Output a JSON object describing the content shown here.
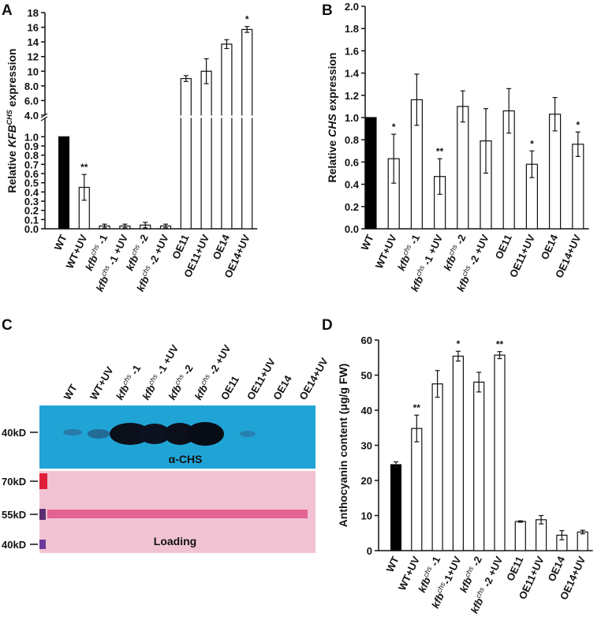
{
  "chart_data": [
    {
      "type": "bar",
      "panel_label": "A",
      "ylabel": [
        "Relative ",
        "KFB",
        "CHS",
        " expression"
      ],
      "ylabel_styles": [
        "normal",
        "italic",
        "sup",
        "normal"
      ],
      "categories": [
        "WT",
        "WT+UV",
        [
          "kfb",
          "chs",
          " -1"
        ],
        [
          "kfb",
          "chs",
          " -1 +UV"
        ],
        [
          "kfb",
          "chs",
          " -2"
        ],
        [
          "kfb",
          "chs",
          " -2 +UV"
        ],
        "OE11",
        "OE11+UV",
        "OE14",
        "OE14+UV"
      ],
      "values": [
        1.0,
        0.45,
        0.03,
        0.03,
        0.04,
        0.03,
        9.0,
        10.0,
        13.7,
        15.7
      ],
      "errors": [
        0,
        0.14,
        0.02,
        0.02,
        0.03,
        0.02,
        0.4,
        1.7,
        0.6,
        0.4
      ],
      "annotations": [
        null,
        "**",
        null,
        null,
        null,
        null,
        null,
        null,
        null,
        "*"
      ],
      "colors": [
        "#000000",
        "#ffffff",
        "#ffffff",
        "#ffffff",
        "#ffffff",
        "#ffffff",
        "#ffffff",
        "#ffffff",
        "#ffffff",
        "#ffffff"
      ],
      "ylim": [
        0,
        18
      ],
      "ybreak": [
        1.2,
        4
      ],
      "yticks": [
        {
          "value": 0,
          "label": "0.0"
        },
        0.1,
        0.2,
        0.3,
        0.4,
        0.5,
        0.6,
        0.7,
        0.8,
        0.9,
        {
          "value": 1,
          "label": "1.0"
        },
        {
          "value": 4,
          "label": "4.0"
        },
        {
          "value": 6,
          "label": "6.0"
        },
        {
          "value": 8,
          "label": "8.0"
        },
        10,
        12,
        14,
        16,
        18
      ]
    },
    {
      "type": "bar",
      "panel_label": "B",
      "ylabel": [
        "Relative ",
        "CHS",
        " expression"
      ],
      "ylabel_styles": [
        "normal",
        "italic",
        "normal"
      ],
      "categories": [
        "WT",
        "WT+UV",
        [
          "kfb",
          "chs",
          " -1"
        ],
        [
          "kfb",
          "chs",
          " -1 +UV"
        ],
        [
          "kfb",
          "chs",
          " -2"
        ],
        [
          "kfb",
          "chs",
          " -2 +UV"
        ],
        "OE11",
        "OE11+UV",
        "OE14",
        "OE14+UV"
      ],
      "values": [
        1.0,
        0.63,
        1.16,
        0.47,
        1.1,
        0.79,
        1.06,
        0.58,
        1.03,
        0.76
      ],
      "errors": [
        0,
        0.22,
        0.23,
        0.16,
        0.14,
        0.29,
        0.2,
        0.12,
        0.15,
        0.11
      ],
      "annotations": [
        null,
        "*",
        null,
        "**",
        null,
        null,
        null,
        "*",
        null,
        "*"
      ],
      "colors": [
        "#000000",
        "#ffffff",
        "#ffffff",
        "#ffffff",
        "#ffffff",
        "#ffffff",
        "#ffffff",
        "#ffffff",
        "#ffffff",
        "#ffffff"
      ],
      "ylim": [
        0,
        2
      ],
      "yticks": [
        {
          "value": 0,
          "label": "0.0"
        },
        0.2,
        0.4,
        0.6,
        0.8,
        {
          "value": 1,
          "label": "1.0"
        },
        1.2,
        1.4,
        1.6,
        1.8,
        {
          "value": 2,
          "label": "2.0"
        }
      ]
    },
    {
      "type": "bar",
      "panel_label": "D",
      "ylabel": [
        "Anthocyanin content (μg/g FW)"
      ],
      "ylabel_styles": [
        "normal"
      ],
      "categories": [
        "WT",
        "WT+UV",
        [
          "kfb",
          "chs",
          " -1"
        ],
        [
          "kfb",
          "chs",
          "-1+UV"
        ],
        [
          "kfb",
          "chs",
          " -2"
        ],
        [
          "kfb",
          "chs",
          " -2 +UV"
        ],
        "OE11",
        "OE11+UV",
        "OE14",
        "OE14+UV"
      ],
      "values": [
        24.5,
        34.8,
        47.5,
        55.4,
        48.0,
        55.7,
        8.3,
        8.8,
        4.4,
        5.3
      ],
      "errors": [
        0.8,
        3.8,
        3.8,
        1.4,
        2.8,
        1.0,
        0.2,
        1.2,
        1.3,
        0.5
      ],
      "annotations": [
        null,
        "**",
        null,
        "*",
        null,
        "**",
        null,
        null,
        null,
        null
      ],
      "colors": [
        "#000000",
        "#ffffff",
        "#ffffff",
        "#ffffff",
        "#ffffff",
        "#ffffff",
        "#ffffff",
        "#ffffff",
        "#ffffff",
        "#ffffff"
      ],
      "ylim": [
        0,
        60
      ],
      "yticks": [
        0,
        10,
        20,
        30,
        40,
        50,
        60
      ]
    }
  ],
  "blot": {
    "panel_label": "C",
    "lanes": [
      "WT",
      "WT+UV",
      [
        "kfb",
        "chs",
        " -1"
      ],
      [
        "kfb",
        "chs",
        " -1 +UV"
      ],
      [
        "kfb",
        "chs",
        " -2"
      ],
      [
        "kfb",
        "chs",
        " -2 +UV"
      ],
      "OE11",
      "OE11+UV",
      "OE14",
      "OE14+UV"
    ],
    "markers": [
      "40kD",
      "70kD",
      "55kD",
      "40kD"
    ],
    "antibody": "α-CHS",
    "loading": "Loading"
  }
}
